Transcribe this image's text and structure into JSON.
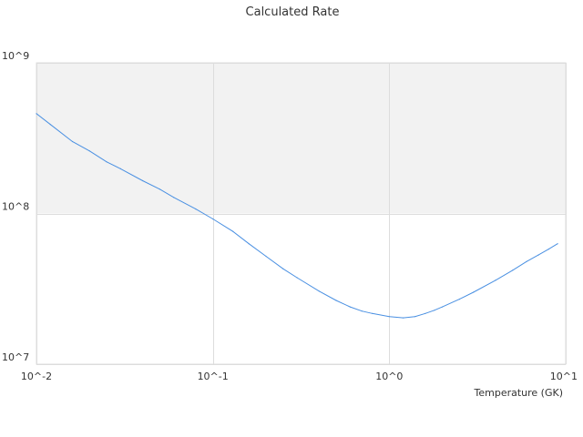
{
  "chart_data": {
    "type": "line",
    "title": "Calculated Rate",
    "xlabel": "Temperature (GK)",
    "ylabel": "",
    "x_scale": "log",
    "y_scale": "log",
    "xlim": [
      0.01,
      10
    ],
    "ylim": [
      10000000,
      1000000000
    ],
    "x_ticks": [
      {
        "value": 0.01,
        "label": "10^-2"
      },
      {
        "value": 0.1,
        "label": "10^-1"
      },
      {
        "value": 1,
        "label": "10^0"
      },
      {
        "value": 10,
        "label": "10^1"
      }
    ],
    "y_ticks": [
      {
        "value": 10000000,
        "label": "10^7"
      },
      {
        "value": 100000000,
        "label": "10^8"
      },
      {
        "value": 1000000000,
        "label": "10^9"
      }
    ],
    "grid": true,
    "shaded_band": {
      "y_from": 100000000,
      "y_to": 1000000000,
      "color": "#f2f2f2"
    },
    "series": [
      {
        "color": "#4a90e2",
        "x": [
          0.01,
          0.012,
          0.016,
          0.02,
          0.025,
          0.03,
          0.04,
          0.05,
          0.06,
          0.08,
          0.1,
          0.13,
          0.16,
          0.2,
          0.25,
          0.3,
          0.4,
          0.5,
          0.6,
          0.7,
          0.8,
          1.0,
          1.2,
          1.4,
          1.6,
          1.8,
          2.0,
          2.5,
          3.0,
          4.0,
          5.0,
          6.0,
          7.0,
          8.0,
          9.0
        ],
        "y": [
          460000000,
          390000000,
          300000000,
          260000000,
          220000000,
          198000000,
          165000000,
          145000000,
          128000000,
          107000000,
          92000000,
          76000000,
          63000000,
          52000000,
          43000000,
          37500000,
          30500000,
          26500000,
          24000000,
          22500000,
          21700000,
          20700000,
          20300000,
          20700000,
          21700000,
          22800000,
          24000000,
          27000000,
          30000000,
          36000000,
          42000000,
          48000000,
          53000000,
          58000000,
          63000000
        ]
      }
    ]
  }
}
